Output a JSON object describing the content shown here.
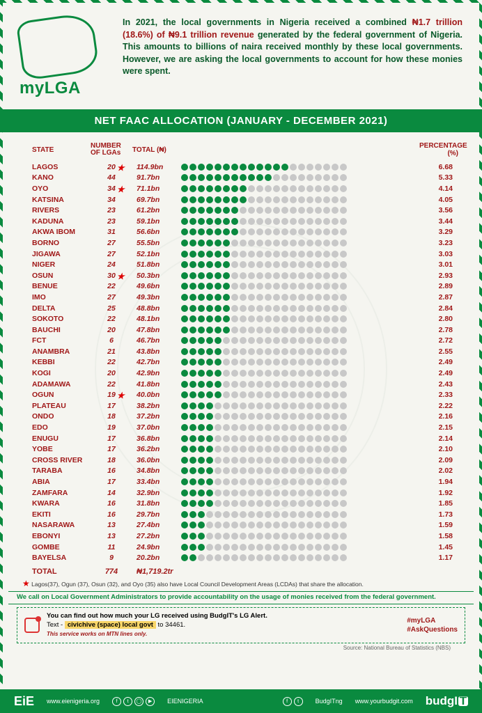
{
  "logo_text": "myLGA",
  "intro_pre": "In 2021, the local governments in Nigeria received a combined ",
  "intro_hl": "₦1.7 trillion (18.6%) of ₦9.1 trillion revenue",
  "intro_post": " generated by the federal government of Nigeria. This amounts to billions of naira received monthly by these local governments. However, we are asking the local governments to account for how these monies were spent.",
  "title": "NET FAAC ALLOCATION (JANUARY - DECEMBER 2021)",
  "headers": {
    "state": "STATE",
    "lgas": "NUMBER OF LGAs",
    "total": "TOTAL (₦)",
    "pct": "PERCENTAGE (%)"
  },
  "dot_filled": "#0a8a3f",
  "dot_empty": "#c8c8c8",
  "max_dots": 20,
  "rows": [
    {
      "state": "LAGOS",
      "lgas": 20,
      "star": true,
      "total": "114.9bn",
      "dots": 13,
      "pct": "6.68"
    },
    {
      "state": "KANO",
      "lgas": 44,
      "star": false,
      "total": "91.7bn",
      "dots": 11,
      "pct": "5.33"
    },
    {
      "state": "OYO",
      "lgas": 34,
      "star": true,
      "total": "71.1bn",
      "dots": 8,
      "pct": "4.14"
    },
    {
      "state": "KATSINA",
      "lgas": 34,
      "star": false,
      "total": "69.7bn",
      "dots": 8,
      "pct": "4.05"
    },
    {
      "state": "RIVERS",
      "lgas": 23,
      "star": false,
      "total": "61.2bn",
      "dots": 7,
      "pct": "3.56"
    },
    {
      "state": "KADUNA",
      "lgas": 23,
      "star": false,
      "total": "59.1bn",
      "dots": 7,
      "pct": "3.44"
    },
    {
      "state": "AKWA IBOM",
      "lgas": 31,
      "star": false,
      "total": "56.6bn",
      "dots": 7,
      "pct": "3.29"
    },
    {
      "state": "BORNO",
      "lgas": 27,
      "star": false,
      "total": "55.5bn",
      "dots": 6,
      "pct": "3.23"
    },
    {
      "state": "JIGAWA",
      "lgas": 27,
      "star": false,
      "total": "52.1bn",
      "dots": 6,
      "pct": "3.03"
    },
    {
      "state": "NIGER",
      "lgas": 24,
      "star": false,
      "total": "51.8bn",
      "dots": 6,
      "pct": "3.01"
    },
    {
      "state": "OSUN",
      "lgas": 30,
      "star": true,
      "total": "50.3bn",
      "dots": 6,
      "pct": "2.93"
    },
    {
      "state": "BENUE",
      "lgas": 22,
      "star": false,
      "total": "49.6bn",
      "dots": 6,
      "pct": "2.89"
    },
    {
      "state": "IMO",
      "lgas": 27,
      "star": false,
      "total": "49.3bn",
      "dots": 6,
      "pct": "2.87"
    },
    {
      "state": "DELTA",
      "lgas": 25,
      "star": false,
      "total": "48.8bn",
      "dots": 6,
      "pct": "2.84"
    },
    {
      "state": "SOKOTO",
      "lgas": 22,
      "star": false,
      "total": "48.1bn",
      "dots": 6,
      "pct": "2.80"
    },
    {
      "state": "BAUCHI",
      "lgas": 20,
      "star": false,
      "total": "47.8bn",
      "dots": 6,
      "pct": "2.78"
    },
    {
      "state": "FCT",
      "lgas": 6,
      "star": false,
      "total": "46.7bn",
      "dots": 5,
      "pct": "2.72"
    },
    {
      "state": "ANAMBRA",
      "lgas": 21,
      "star": false,
      "total": "43.8bn",
      "dots": 5,
      "pct": "2.55"
    },
    {
      "state": "KEBBI",
      "lgas": 22,
      "star": false,
      "total": "42.7bn",
      "dots": 5,
      "pct": "2.49"
    },
    {
      "state": "KOGI",
      "lgas": 20,
      "star": false,
      "total": "42.9bn",
      "dots": 5,
      "pct": "2.49"
    },
    {
      "state": "ADAMAWA",
      "lgas": 22,
      "star": false,
      "total": "41.8bn",
      "dots": 5,
      "pct": "2.43"
    },
    {
      "state": "OGUN",
      "lgas": 19,
      "star": true,
      "total": "40.0bn",
      "dots": 5,
      "pct": "2.33"
    },
    {
      "state": "PLATEAU",
      "lgas": 17,
      "star": false,
      "total": "38.2bn",
      "dots": 4,
      "pct": "2.22"
    },
    {
      "state": "ONDO",
      "lgas": 18,
      "star": false,
      "total": "37.2bn",
      "dots": 4,
      "pct": "2.16"
    },
    {
      "state": "EDO",
      "lgas": 19,
      "star": false,
      "total": "37.0bn",
      "dots": 4,
      "pct": "2.15"
    },
    {
      "state": "ENUGU",
      "lgas": 17,
      "star": false,
      "total": "36.8bn",
      "dots": 4,
      "pct": "2.14"
    },
    {
      "state": "YOBE",
      "lgas": 17,
      "star": false,
      "total": "36.2bn",
      "dots": 4,
      "pct": "2.10"
    },
    {
      "state": "CROSS RIVER",
      "lgas": 18,
      "star": false,
      "total": "36.0bn",
      "dots": 4,
      "pct": "2.09"
    },
    {
      "state": "TARABA",
      "lgas": 16,
      "star": false,
      "total": "34.8bn",
      "dots": 4,
      "pct": "2.02"
    },
    {
      "state": "ABIA",
      "lgas": 17,
      "star": false,
      "total": "33.4bn",
      "dots": 4,
      "pct": "1.94"
    },
    {
      "state": "ZAMFARA",
      "lgas": 14,
      "star": false,
      "total": "32.9bn",
      "dots": 4,
      "pct": "1.92"
    },
    {
      "state": "KWARA",
      "lgas": 16,
      "star": false,
      "total": "31.8bn",
      "dots": 4,
      "pct": "1.85"
    },
    {
      "state": "EKITI",
      "lgas": 16,
      "star": false,
      "total": "29.7bn",
      "dots": 3,
      "pct": "1.73"
    },
    {
      "state": "NASARAWA",
      "lgas": 13,
      "star": false,
      "total": "27.4bn",
      "dots": 3,
      "pct": "1.59"
    },
    {
      "state": "EBONYI",
      "lgas": 13,
      "star": false,
      "total": "27.2bn",
      "dots": 3,
      "pct": "1.58"
    },
    {
      "state": "GOMBE",
      "lgas": 11,
      "star": false,
      "total": "24.9bn",
      "dots": 3,
      "pct": "1.45"
    },
    {
      "state": "BAYELSA",
      "lgas": 9,
      "star": false,
      "total": "20.2bn",
      "dots": 2,
      "pct": "1.17"
    }
  ],
  "total_row": {
    "label": "TOTAL",
    "lgas": "774",
    "total": "₦1,719.2tr"
  },
  "note": "Lagos(37), Ogun (37), Osun (32), and Oyo (35) also have Local Council Development Areas (LCDAs) that share the allocation.",
  "callout": "We call on Local Government Administrators to provide accountability on the usage of monies received from the federal government.",
  "cta": {
    "line1": "You can find out how much your LG received using BudgIT's LG Alert.",
    "line2_pre": "Text - ",
    "line2_yellow": "civichive (space) local govt",
    "line2_post": " to 34461.",
    "mtn": "This service works on MTN lines only.",
    "hash1": "#myLGA",
    "hash2": "#AskQuestions",
    "source": "Source: National Bureau of Statistics (NBS)"
  },
  "footer": {
    "brand1": "EiE",
    "brand1_sub": "NIGERIA",
    "url1": "www.eienigeria.org",
    "handle1": "EIENIGERIA",
    "handle2": "BudgITng",
    "url2": "www.yourbudgit.com",
    "brand2": "budgIT"
  }
}
